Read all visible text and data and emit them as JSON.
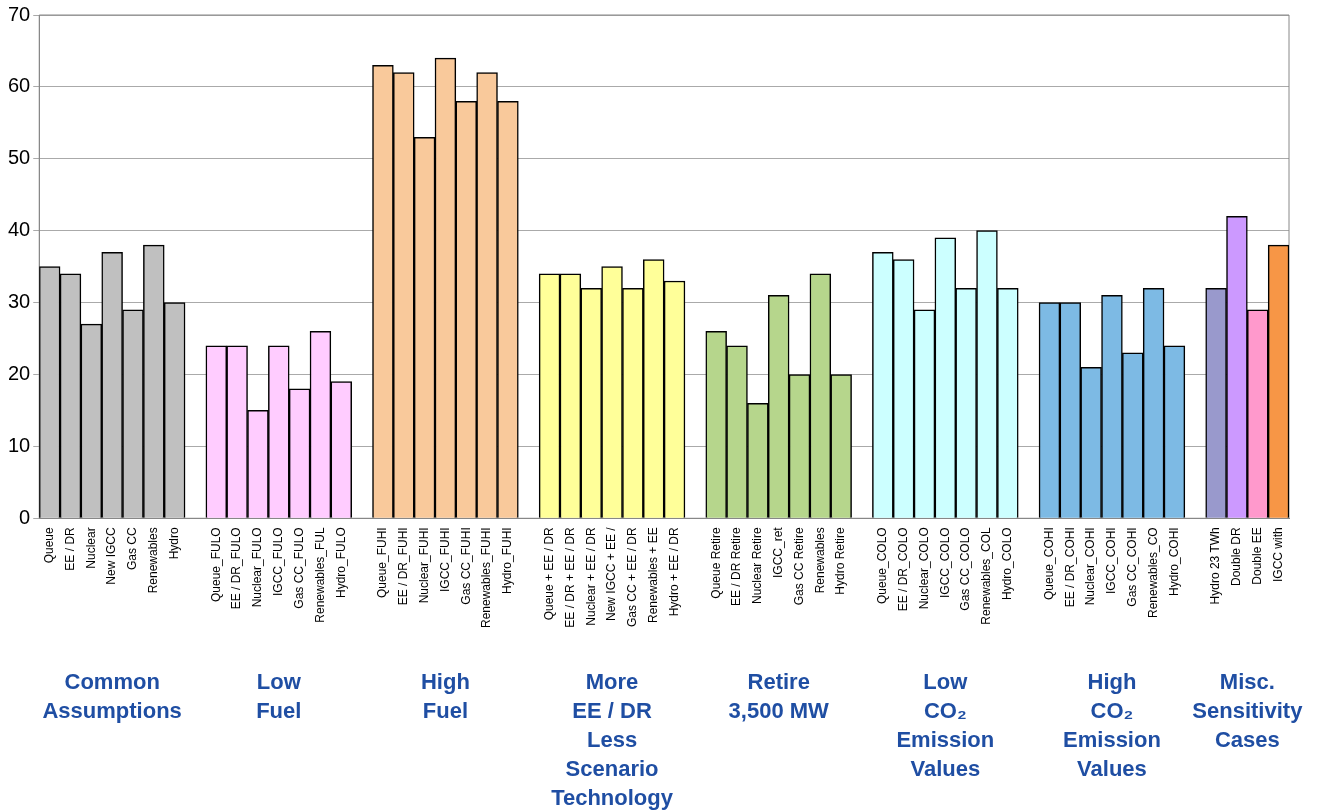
{
  "chart_data": {
    "type": "bar",
    "categories": [
      "Queue",
      "EE / DR",
      "Nuclear",
      "New IGCC",
      "Gas CC",
      "Renewables",
      "Hydro",
      null,
      "Queue_FULO",
      "EE / DR_FULO",
      "Nuclear_FULO",
      "IGCC_FULO",
      "Gas CC_FULO",
      "Renewables_FUL",
      "Hydro_FULO",
      null,
      "Queue_FUHI",
      "EE / DR_FUHI",
      "Nuclear_FUHI",
      "IGCC_FUHI",
      "Gas CC_FUHI",
      "Renewables_FUHI",
      "Hydro_FUHI",
      null,
      "Queue + EE / DR",
      "EE / DR + EE / DR",
      "Nuclear + EE / DR",
      "New IGCC + EE /",
      "Gas CC + EE / DR",
      "Renewables + EE",
      "Hydro + EE / DR",
      null,
      "Queue Retire",
      "EE / DR Retire",
      "Nuclear Retire",
      "IGCC_ret",
      "Gas CC Retire",
      "Renewables",
      "Hydro Retire",
      null,
      "Queue_COLO",
      "EE / DR_COLO",
      "Nuclear_COLO",
      "IGCC_COLO",
      "Gas CC_COLO",
      "Renewables_COL",
      "Hydro_COLO",
      null,
      "Queue_COHI",
      "EE / DR_COHI",
      "Nuclear_COHI",
      "IGCC_COHI",
      "Gas CC_COHI",
      "Renewables_CO",
      "Hydro_COHI",
      null,
      "Hydro 23 TWh",
      "Double DR",
      "Double EE",
      "IGCC with"
    ],
    "values": [
      35,
      34,
      27,
      37,
      29,
      38,
      30,
      null,
      24,
      24,
      15,
      24,
      18,
      26,
      19,
      null,
      63,
      62,
      53,
      64,
      58,
      62,
      58,
      null,
      34,
      34,
      32,
      35,
      32,
      36,
      33,
      null,
      26,
      24,
      16,
      31,
      20,
      34,
      20,
      null,
      37,
      36,
      29,
      39,
      32,
      40,
      32,
      null,
      30,
      30,
      21,
      31,
      23,
      32,
      24,
      null,
      32,
      42,
      29,
      38
    ],
    "colors": [
      "#c0c0c0",
      "#c0c0c0",
      "#c0c0c0",
      "#c0c0c0",
      "#c0c0c0",
      "#c0c0c0",
      "#c0c0c0",
      null,
      "#ffccff",
      "#ffccff",
      "#ffccff",
      "#ffccff",
      "#ffccff",
      "#ffccff",
      "#ffccff",
      null,
      "#f9c99b",
      "#f9c99b",
      "#f9c99b",
      "#f9c99b",
      "#f9c99b",
      "#f9c99b",
      "#f9c99b",
      null,
      "#ffff99",
      "#ffff99",
      "#ffff99",
      "#ffff99",
      "#ffff99",
      "#ffff99",
      "#ffff99",
      null,
      "#b6d68c",
      "#b6d68c",
      "#b6d68c",
      "#b6d68c",
      "#b6d68c",
      "#b6d68c",
      "#b6d68c",
      null,
      "#ccffff",
      "#ccffff",
      "#ccffff",
      "#ccffff",
      "#ccffff",
      "#ccffff",
      "#ccffff",
      null,
      "#7dbae4",
      "#7dbae4",
      "#7dbae4",
      "#7dbae4",
      "#7dbae4",
      "#7dbae4",
      "#7dbae4",
      null,
      "#9999cc",
      "#cc99ff",
      "#ff99cc",
      "#f79646"
    ],
    "ylim": [
      0,
      70
    ],
    "yticks": [
      0,
      10,
      20,
      30,
      40,
      50,
      60,
      70
    ],
    "grid": "y",
    "legend": false,
    "annotations": [
      "Common\nAssumptions",
      "Low\nFuel",
      "High\nFuel",
      "More\nEE / DR\nLess\nScenario\nTechnology",
      "Retire\n3,500 MW",
      "Low\nCO₂\nEmission\nValues",
      "High\nCO₂\nEmission\nValues",
      "Misc.\nSensitivity\nCases"
    ]
  }
}
